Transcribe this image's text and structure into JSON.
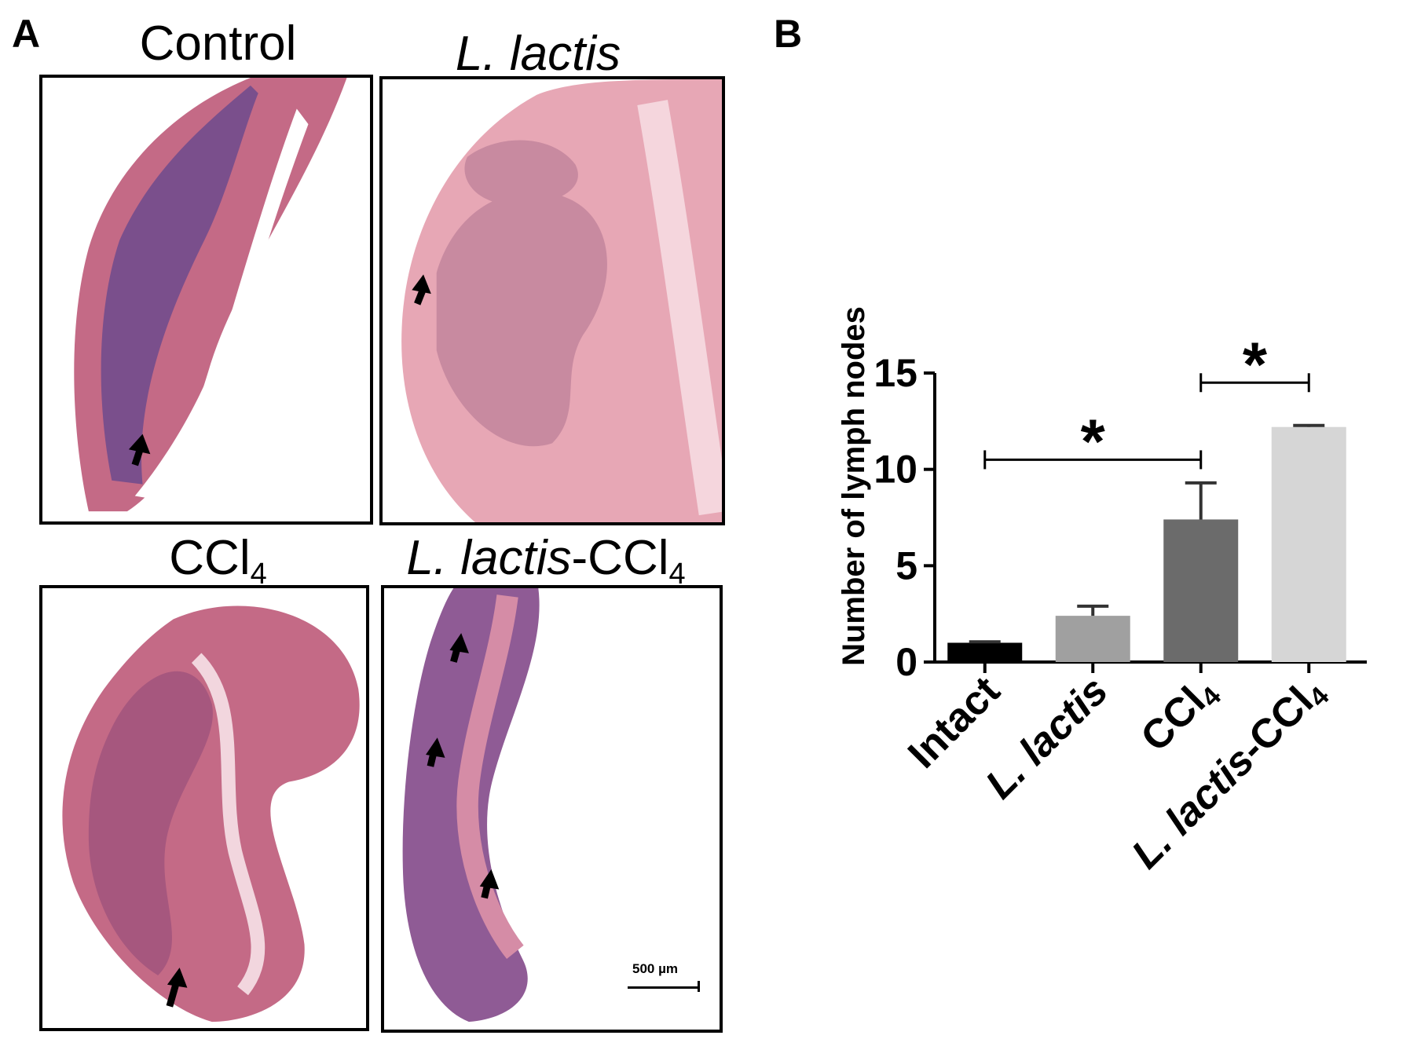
{
  "panels": {
    "a_letter": "A",
    "b_letter": "B"
  },
  "histology": {
    "titles": [
      {
        "main": "Control",
        "italic": "",
        "sub": ""
      },
      {
        "main": "",
        "italic": "L. lactis",
        "sub": ""
      },
      {
        "main": "CCl",
        "italic": "",
        "sub": "4"
      },
      {
        "main": "-CCl",
        "italic": "L. lactis",
        "sub": "4"
      }
    ],
    "scale_bar_label": "500 µm",
    "colors": {
      "tissue_purple": "#7a4f8c",
      "tissue_pink": "#c46a86",
      "tissue_light": "#e7a7b5"
    }
  },
  "chart_data": {
    "type": "bar",
    "categories": [
      "Intact",
      "L. lactis",
      "CCl4",
      "L. lactis-CCl4"
    ],
    "category_labels": [
      {
        "text": "Intact",
        "italic": "",
        "sub": ""
      },
      {
        "text": "",
        "italic": "L. lactis",
        "sub": ""
      },
      {
        "text": "CCl",
        "italic": "",
        "sub": "4"
      },
      {
        "text": "-CCl",
        "italic": "L. lactis",
        "sub": "4"
      }
    ],
    "values": [
      1.0,
      2.4,
      7.4,
      12.2
    ],
    "errors": [
      0.05,
      0.5,
      1.9,
      0.08
    ],
    "colors": [
      "#000000",
      "#a0a0a0",
      "#6b6b6b",
      "#d6d6d6"
    ],
    "ylabel": "Number of lymph nodes",
    "xlabel": "",
    "ylim": [
      0,
      15
    ],
    "yticks": [
      0,
      5,
      10,
      15
    ],
    "significance": [
      {
        "from": 0,
        "to": 2,
        "label": "*",
        "y": 10.5
      },
      {
        "from": 2,
        "to": 3,
        "label": "*",
        "y": 14.5
      }
    ],
    "grid": false
  }
}
